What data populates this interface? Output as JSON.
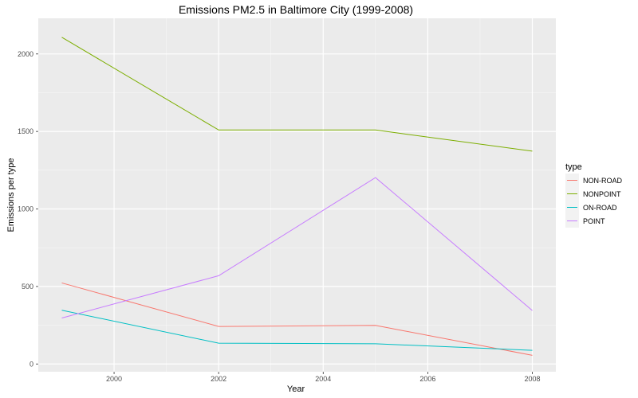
{
  "chart_data": {
    "type": "line",
    "title": "Emissions PM2.5 in Baltimore City (1999-2008)",
    "xlabel": "Year",
    "ylabel": "Emissions per type",
    "x": [
      1999,
      2002,
      2005,
      2008
    ],
    "xlim": [
      1998.55,
      2008.45
    ],
    "ylim": [
      -50,
      2230
    ],
    "x_ticks": [
      2000,
      2002,
      2004,
      2006,
      2008
    ],
    "y_ticks": [
      0,
      500,
      1000,
      1500,
      2000
    ],
    "grid": true,
    "legend": {
      "title": "type",
      "position": "right"
    },
    "series": [
      {
        "name": "NON-ROAD",
        "color": "#F8766D",
        "values": [
          522.9,
          242.2,
          248.9,
          55.8
        ]
      },
      {
        "name": "NONPOINT",
        "color": "#7CAE00",
        "values": [
          2107.6,
          1509.5,
          1509.5,
          1373.2
        ]
      },
      {
        "name": "ON-ROAD",
        "color": "#00BFC4",
        "values": [
          346.8,
          134.3,
          130.4,
          88.3
        ]
      },
      {
        "name": "POINT",
        "color": "#C77CFF",
        "values": [
          296.8,
          569.3,
          1202.5,
          345.0
        ]
      }
    ]
  }
}
